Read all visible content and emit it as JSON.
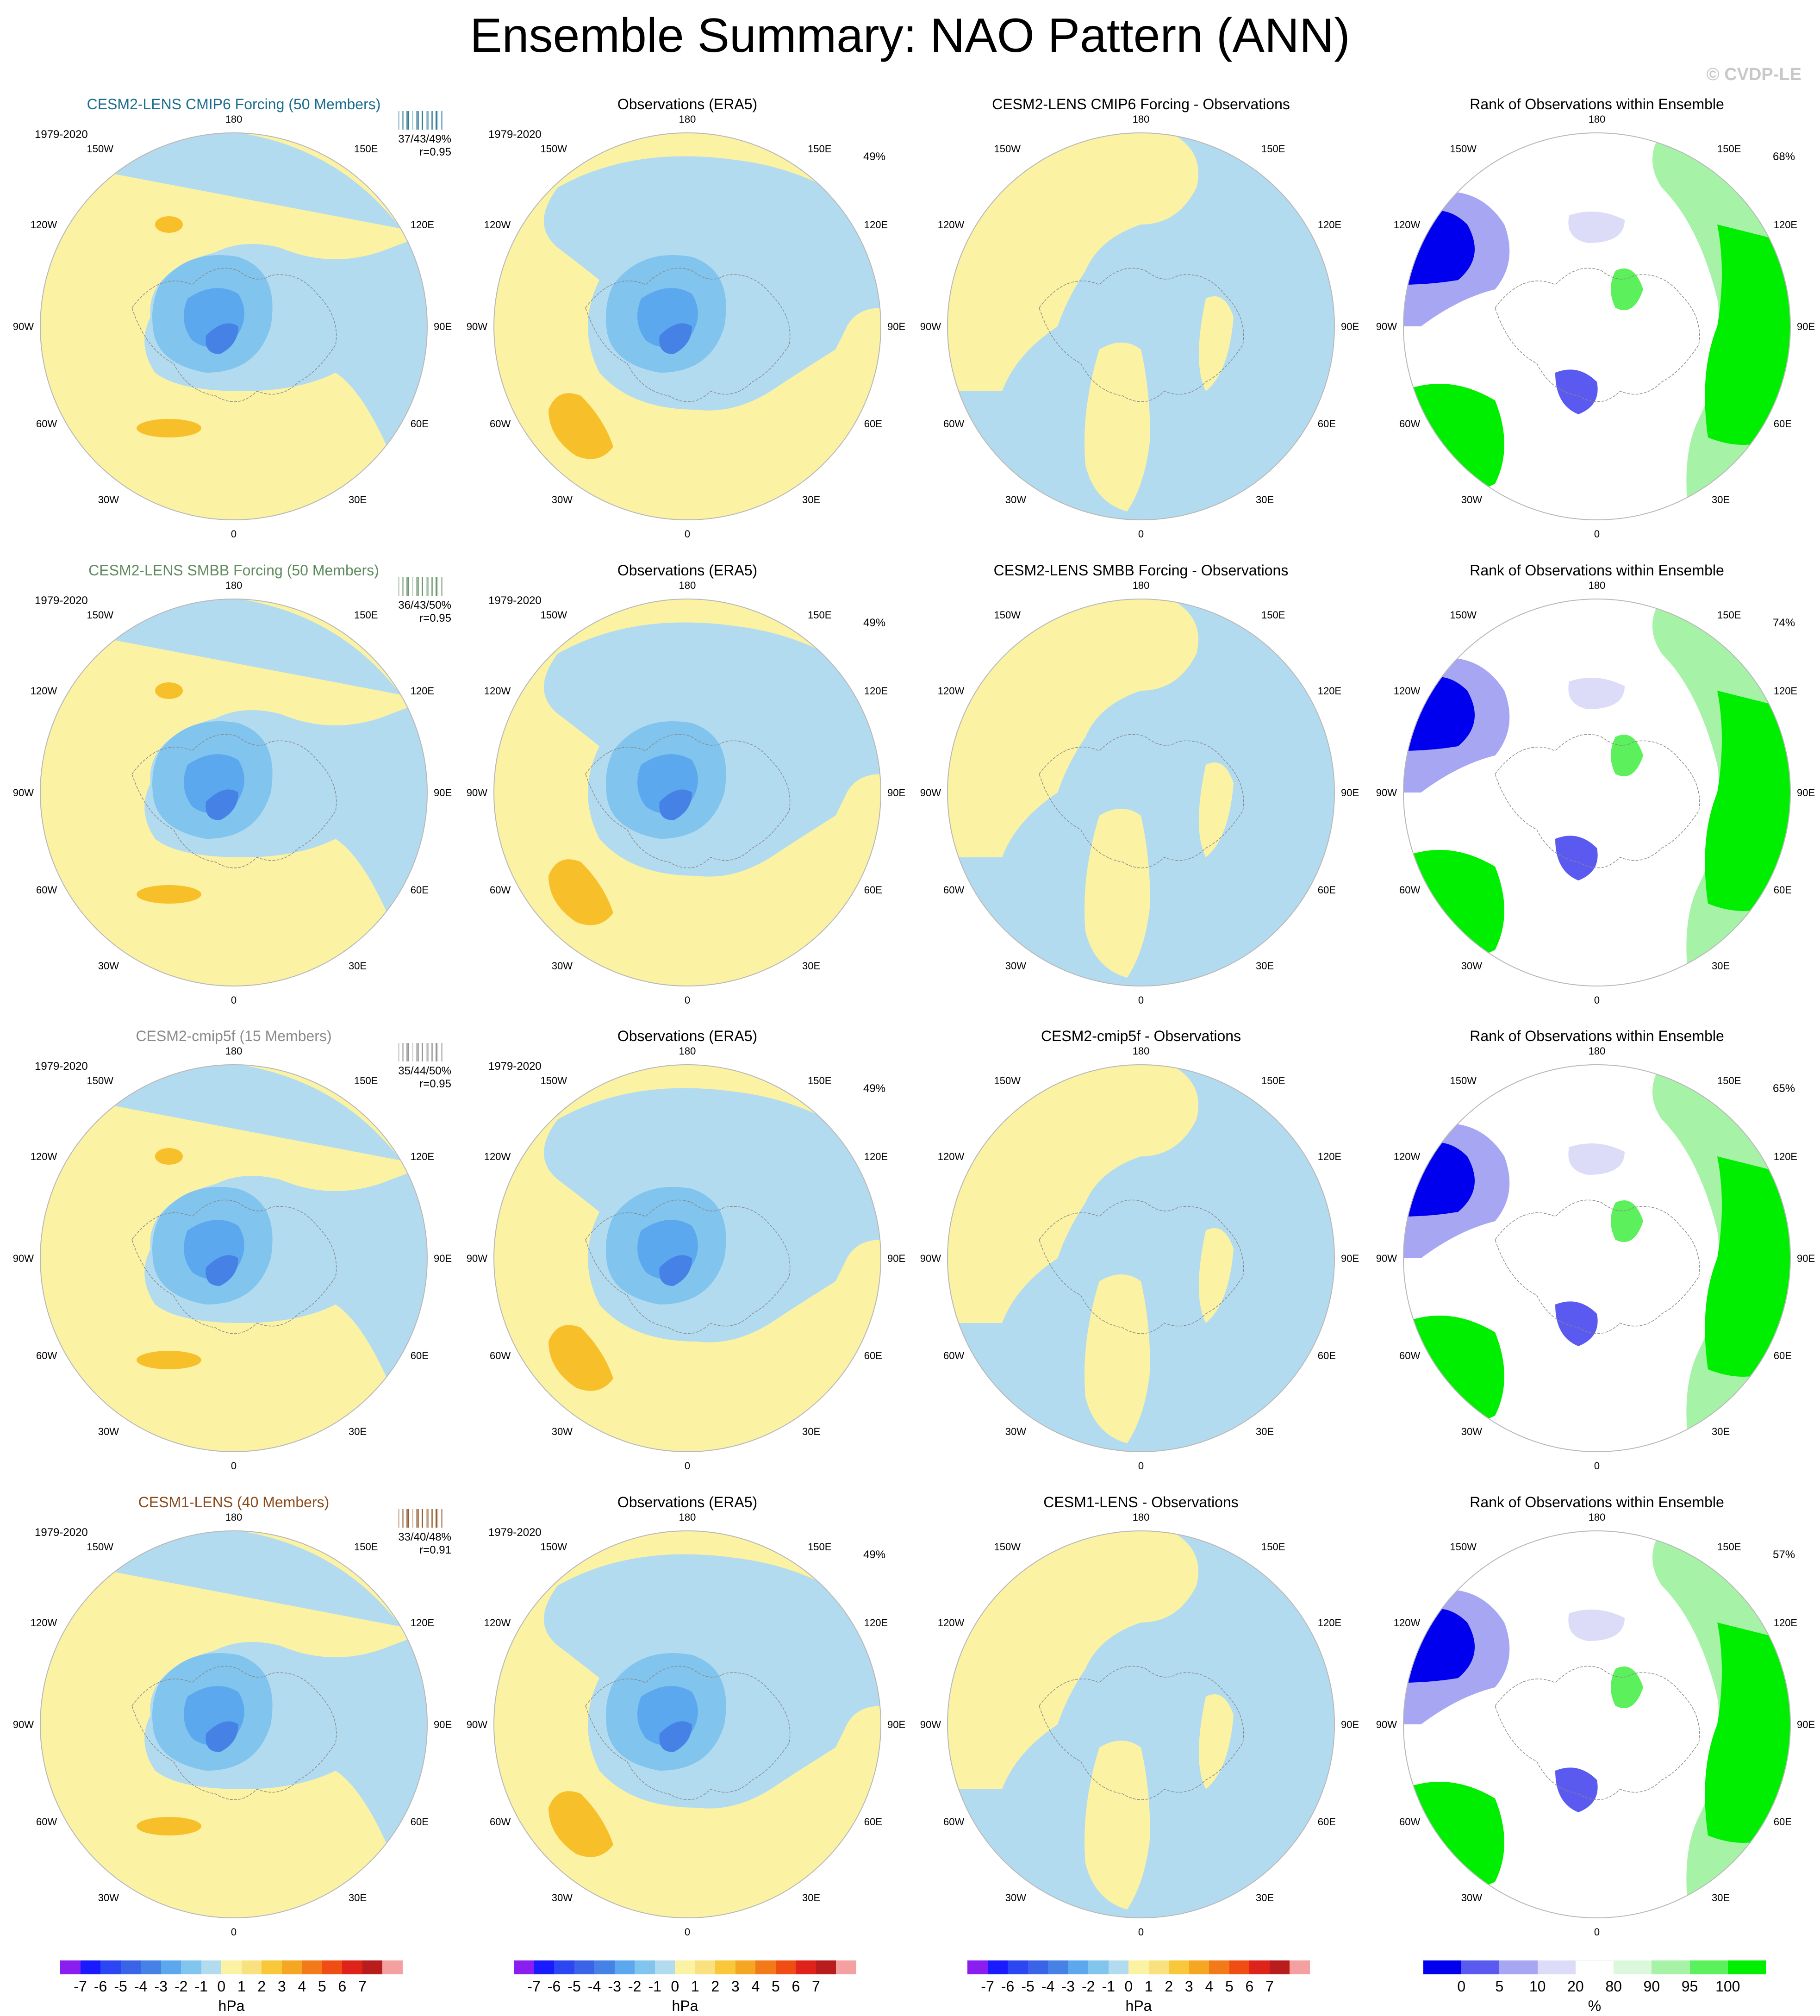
{
  "title": "Ensemble Summary: NAO Pattern (ANN)",
  "watermark": "© CVDP-LE",
  "colors": {
    "neg7": "#8a1ef0",
    "neg6": "#1a1aff",
    "neg5": "#2b46f2",
    "neg4": "#3b63e8",
    "neg3": "#4682e6",
    "neg2": "#5ba8ee",
    "neg1": "#81c4ee",
    "neg0": "#b3dbf0",
    "pos0": "#fbf2a4",
    "pos1": "#fae180",
    "pos2": "#f8c73a",
    "pos3": "#f5a623",
    "pos4": "#f37a18",
    "pos5": "#f04d14",
    "pos6": "#e0231a",
    "pos7": "#b81c1c",
    "pos8": "#f4a0a0",
    "rank_lo0": "#0000ee",
    "rank_lo1": "#5a5af0",
    "rank_lo2": "#a6a6f2",
    "rank_lo3": "#dcdcf8",
    "rank_mid": "#ffffff",
    "rank_hi1": "#dcf8dc",
    "rank_hi2": "#a6f2a6",
    "rank_hi3": "#5cf05c",
    "rank_hi4": "#00ee00",
    "pos_contour": "#f7c02a",
    "land_outline": "#888888"
  },
  "lon_labels": {
    "top": "180",
    "bottom": "0",
    "left": "90W",
    "right": "90E",
    "ul1": "150W",
    "ul2": "120W",
    "ur1": "150E",
    "ur2": "120E",
    "ll1": "60W",
    "ll2": "30W",
    "lr1": "60E",
    "lr2": "30E"
  },
  "rows": [
    {
      "model": {
        "title": "CESM2-LENS CMIP6 Forcing (50 Members)",
        "color": "#1a6d8e",
        "period": "1979-2020",
        "stat1": "37/43/49%",
        "stat2": "r=0.95"
      },
      "obs": {
        "title": "Observations (ERA5)",
        "period": "1979-2020",
        "pct": "49%"
      },
      "diff": {
        "title": "CESM2-LENS CMIP6 Forcing - Observations"
      },
      "rank": {
        "title": "Rank of Observations within Ensemble",
        "pct": "68%"
      }
    },
    {
      "model": {
        "title": "CESM2-LENS SMBB Forcing (50 Members)",
        "color": "#5f8a5f",
        "period": "1979-2020",
        "stat1": "36/43/50%",
        "stat2": "r=0.95"
      },
      "obs": {
        "title": "Observations (ERA5)",
        "period": "1979-2020",
        "pct": "49%"
      },
      "diff": {
        "title": "CESM2-LENS SMBB Forcing - Observations"
      },
      "rank": {
        "title": "Rank of Observations within Ensemble",
        "pct": "74%"
      }
    },
    {
      "model": {
        "title": "CESM2-cmip5f (15 Members)",
        "color": "#8a8a8a",
        "period": "1979-2020",
        "stat1": "35/44/50%",
        "stat2": "r=0.95"
      },
      "obs": {
        "title": "Observations (ERA5)",
        "period": "1979-2020",
        "pct": "49%"
      },
      "diff": {
        "title": "CESM2-cmip5f - Observations"
      },
      "rank": {
        "title": "Rank of Observations within Ensemble",
        "pct": "65%"
      }
    },
    {
      "model": {
        "title": "CESM1-LENS (40 Members)",
        "color": "#8a4a1a",
        "period": "1979-2020",
        "stat1": "33/40/48%",
        "stat2": "r=0.91"
      },
      "obs": {
        "title": "Observations (ERA5)",
        "period": "1979-2020",
        "pct": "49%"
      },
      "diff": {
        "title": "CESM1-LENS - Observations"
      },
      "rank": {
        "title": "Rank of Observations within Ensemble",
        "pct": "57%"
      }
    }
  ],
  "colorbar_hpa": {
    "labels": [
      "-7",
      "-6",
      "-5",
      "-4",
      "-3",
      "-2",
      "-1",
      "0",
      "1",
      "2",
      "3",
      "4",
      "5",
      "6",
      "7"
    ],
    "unit": "hPa"
  },
  "colorbar_rank": {
    "labels": [
      "0",
      "5",
      "10",
      "20",
      "80",
      "90",
      "95",
      "100"
    ],
    "unit": "%"
  }
}
